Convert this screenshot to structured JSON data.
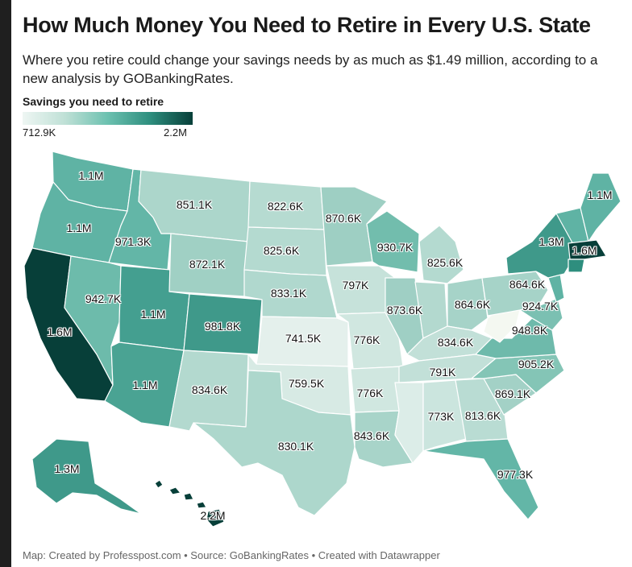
{
  "title": "How Much Money You Need to Retire in Every U.S. State",
  "subtitle": "Where you retire could change your savings needs by as much as $1.49 million, according to a new analysis by GOBankingRates.",
  "legend": {
    "title": "Savings you need to retire",
    "min": "712.9K",
    "max": "2.2M"
  },
  "colors": {
    "lowest": "#eef6f3",
    "low": "#bfe0d6",
    "mid": "#6cc1b0",
    "high": "#2e8e7e",
    "highest": "#073f39"
  },
  "states": {
    "washington": "1.1M",
    "oregon": "1.1M",
    "california": "1.6M",
    "idaho": "971.3K",
    "nevada": "942.7K",
    "utah": "1.1M",
    "arizona": "1.1M",
    "montana": "851.1K",
    "wyoming": "872.1K",
    "colorado": "981.8K",
    "new_mexico": "834.6K",
    "north_dakota": "822.6K",
    "south_dakota": "825.6K",
    "nebraska": "833.1K",
    "kansas": "741.5K",
    "oklahoma": "759.5K",
    "texas": "830.1K",
    "minnesota": "870.6K",
    "iowa": "797K",
    "missouri": "776K",
    "arkansas": "776K",
    "louisiana": "843.6K",
    "wisconsin": "930.7K",
    "illinois": "873.6K",
    "michigan": "825.6K",
    "indiana": "834.6K",
    "ohio": "864.6K",
    "kentucky": "791K",
    "tennessee": "791K",
    "mississippi": "773K",
    "alabama": "773K",
    "georgia": "813.6K",
    "florida": "977.3K",
    "south_carolina": "869.1K",
    "north_carolina": "905.2K",
    "virginia": "948.8K",
    "pennsylvania": "864.6K",
    "new_york": "1.3M",
    "maine": "1.1M",
    "massachusetts": "1.6M",
    "maryland": "924.7K",
    "alaska": "1.3M",
    "hawaii": "2.2M"
  },
  "footer": "Map: Created by Professpost.com • Source: GoBankingRates • Created with Datawrapper"
}
